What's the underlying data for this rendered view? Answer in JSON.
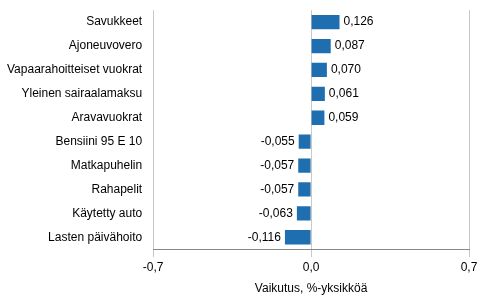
{
  "chart_data": {
    "type": "bar",
    "orientation": "horizontal",
    "categories": [
      "Savukkeet",
      "Ajoneuvovero",
      "Vapaarahoitteiset vuokrat",
      "Yleinen sairaalamaksu",
      "Aravavuokrat",
      "Bensiini 95 E 10",
      "Matkapuhelin",
      "Rahapelit",
      "Käytetty auto",
      "Lasten päivähoito"
    ],
    "values": [
      0.126,
      0.087,
      0.07,
      0.061,
      0.059,
      -0.055,
      -0.057,
      -0.057,
      -0.063,
      -0.116
    ],
    "value_labels": [
      "0,126",
      "0,087",
      "0,070",
      "0,061",
      "0,059",
      "-0,055",
      "-0,057",
      "-0,057",
      "-0,063",
      "-0,116"
    ],
    "data_labels": true,
    "color": "#1f6fb0",
    "xlabel": "Vaikutus, %-yksikköä",
    "xlim": [
      -0.7,
      0.7
    ],
    "xticks": [
      {
        "value": -0.7,
        "label": "-0,7"
      },
      {
        "value": 0,
        "label": "0,0"
      },
      {
        "value": 0.7,
        "label": "0,7"
      }
    ],
    "grid": true
  }
}
